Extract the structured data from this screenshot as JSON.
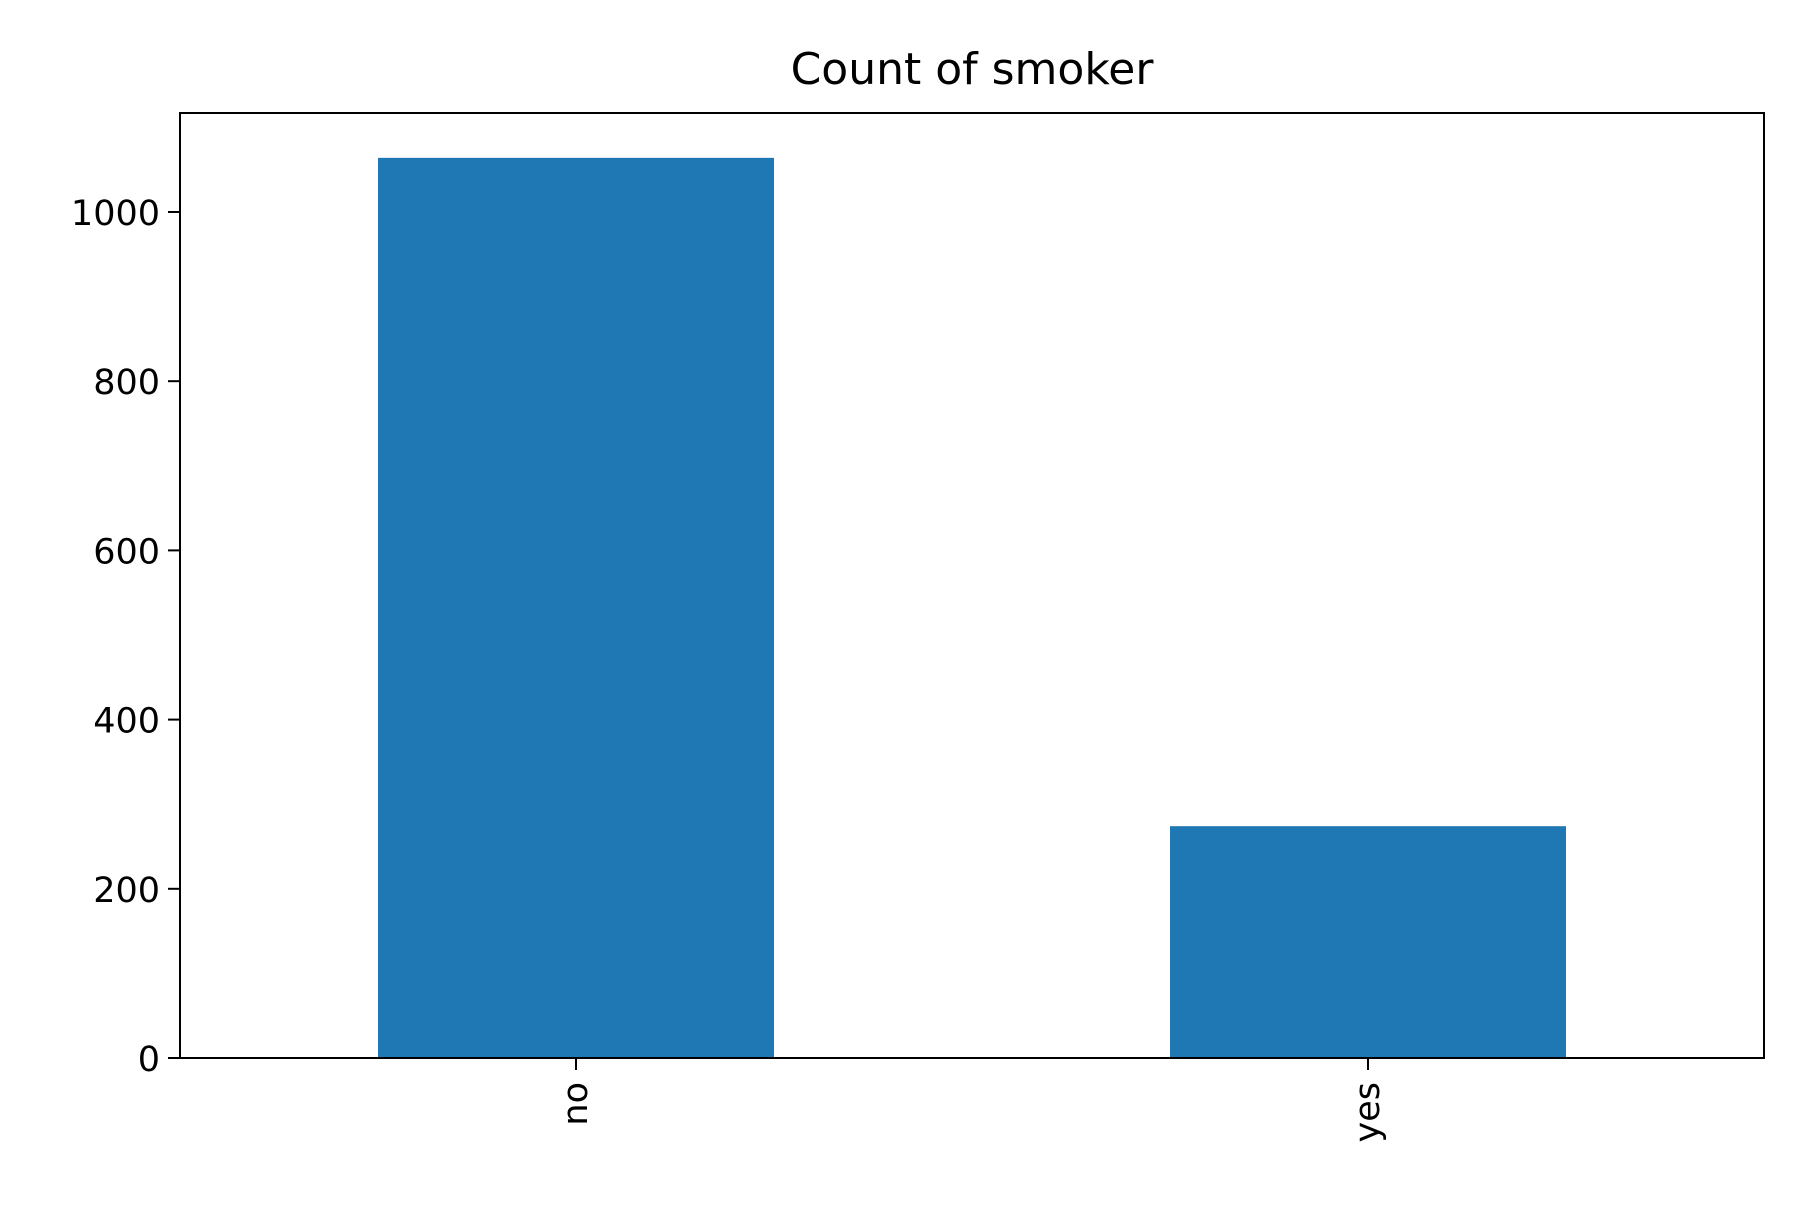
{
  "chart_data": {
    "type": "bar",
    "title": "Count of smoker",
    "xlabel": "",
    "ylabel": "",
    "categories": [
      "no",
      "yes"
    ],
    "values": [
      1064,
      274
    ],
    "ylim": [
      0,
      1117
    ],
    "yticks": [
      0,
      200,
      400,
      600,
      800,
      1000
    ],
    "bar_color": "#1f77b4",
    "grid": false,
    "legend": "none"
  }
}
